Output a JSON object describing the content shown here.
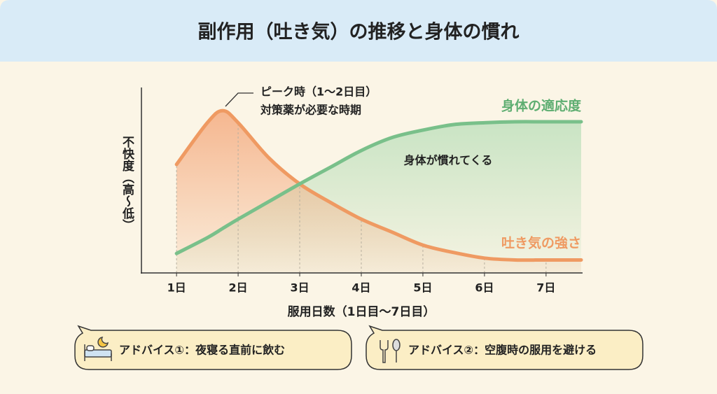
{
  "chart_data": {
    "type": "line",
    "title": "副作用（吐き気）の推移と身体の慣れ",
    "x": [
      1,
      1.5,
      1.75,
      2,
      2.5,
      3,
      3.5,
      4,
      4.5,
      5,
      5.5,
      6,
      6.5,
      7,
      7.57
    ],
    "xlim": [
      0.43,
      7.57
    ],
    "xticks": [
      {
        "value": 1,
        "label": "1日"
      },
      {
        "value": 2,
        "label": "2日"
      },
      {
        "value": 3,
        "label": "3日"
      },
      {
        "value": 4,
        "label": "4日"
      },
      {
        "value": 5,
        "label": "5日"
      },
      {
        "value": 6,
        "label": "6日"
      },
      {
        "value": 7,
        "label": "7日"
      }
    ],
    "ylim": [
      0,
      100
    ],
    "xlabel": "服用日数（1日目〜7日目）",
    "ylabel": "不快度（高〜低）",
    "series": [
      {
        "name": "吐き気の強さ",
        "color": "#ef9a62",
        "values": [
          58.5,
          81,
          87.5,
          81,
          62,
          48,
          38,
          29,
          22,
          15,
          11,
          8,
          7,
          7,
          7
        ]
      },
      {
        "name": "身体の適応度",
        "color": "#79c08a",
        "values": [
          10.5,
          19,
          24,
          29,
          38.5,
          48,
          57,
          66,
          73,
          77,
          80,
          81,
          81.5,
          81.5,
          81.5
        ]
      }
    ],
    "annotations": [
      "ピーク時（1〜2日目）",
      "対策薬が必要な時期",
      "身体が慣れてくる"
    ]
  },
  "tips": [
    "アドバイス①：夜寝る直前に飲む",
    "アドバイス②：空腹時の服用を避ける"
  ]
}
